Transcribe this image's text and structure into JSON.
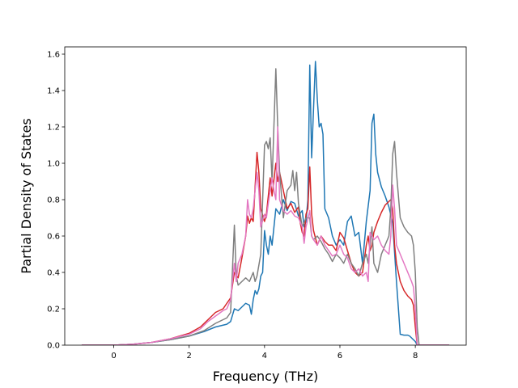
{
  "chart_data": {
    "type": "line",
    "title": "",
    "xlabel": "Frequency (THz)",
    "ylabel": "Partial Density of States",
    "xlim": [
      -1.3,
      9.35
    ],
    "ylim": [
      0.0,
      1.64
    ],
    "xticks": [
      0,
      2,
      4,
      6,
      8
    ],
    "yticks": [
      0.0,
      0.2,
      0.4,
      0.6,
      0.8,
      1.0,
      1.2,
      1.4,
      1.6
    ],
    "xtick_labels": [
      "0",
      "2",
      "4",
      "6",
      "8"
    ],
    "ytick_labels": [
      "0.0",
      "0.2",
      "0.4",
      "0.6",
      "0.8",
      "1.0",
      "1.2",
      "1.4",
      "1.6"
    ],
    "grid": false,
    "legend": "none",
    "series": [
      {
        "color": "#1f77b4",
        "points": [
          [
            -0.85,
            0
          ],
          [
            0,
            0
          ],
          [
            0.5,
            0.005
          ],
          [
            1.0,
            0.015
          ],
          [
            1.5,
            0.03
          ],
          [
            2.0,
            0.05
          ],
          [
            2.4,
            0.075
          ],
          [
            2.7,
            0.1
          ],
          [
            3.0,
            0.115
          ],
          [
            3.1,
            0.13
          ],
          [
            3.2,
            0.2
          ],
          [
            3.3,
            0.19
          ],
          [
            3.4,
            0.21
          ],
          [
            3.5,
            0.23
          ],
          [
            3.6,
            0.22
          ],
          [
            3.65,
            0.17
          ],
          [
            3.7,
            0.25
          ],
          [
            3.75,
            0.3
          ],
          [
            3.8,
            0.28
          ],
          [
            3.85,
            0.31
          ],
          [
            3.9,
            0.38
          ],
          [
            3.95,
            0.4
          ],
          [
            4.0,
            0.63
          ],
          [
            4.05,
            0.55
          ],
          [
            4.1,
            0.5
          ],
          [
            4.15,
            0.6
          ],
          [
            4.2,
            0.55
          ],
          [
            4.3,
            0.75
          ],
          [
            4.4,
            0.72
          ],
          [
            4.5,
            0.8
          ],
          [
            4.6,
            0.74
          ],
          [
            4.7,
            0.79
          ],
          [
            4.8,
            0.78
          ],
          [
            4.9,
            0.71
          ],
          [
            5.0,
            0.74
          ],
          [
            5.05,
            0.65
          ],
          [
            5.1,
            0.68
          ],
          [
            5.15,
            0.8
          ],
          [
            5.2,
            1.54
          ],
          [
            5.25,
            1.03
          ],
          [
            5.3,
            1.3
          ],
          [
            5.35,
            1.56
          ],
          [
            5.4,
            1.35
          ],
          [
            5.45,
            1.2
          ],
          [
            5.5,
            1.22
          ],
          [
            5.55,
            1.16
          ],
          [
            5.6,
            0.75
          ],
          [
            5.7,
            0.7
          ],
          [
            5.8,
            0.6
          ],
          [
            5.9,
            0.55
          ],
          [
            6.0,
            0.58
          ],
          [
            6.1,
            0.55
          ],
          [
            6.2,
            0.68
          ],
          [
            6.3,
            0.71
          ],
          [
            6.4,
            0.6
          ],
          [
            6.5,
            0.62
          ],
          [
            6.6,
            0.45
          ],
          [
            6.7,
            0.68
          ],
          [
            6.8,
            0.85
          ],
          [
            6.85,
            1.22
          ],
          [
            6.9,
            1.27
          ],
          [
            6.95,
            1.05
          ],
          [
            7.0,
            0.95
          ],
          [
            7.1,
            0.87
          ],
          [
            7.2,
            0.82
          ],
          [
            7.3,
            0.76
          ],
          [
            7.4,
            0.67
          ],
          [
            7.5,
            0.35
          ],
          [
            7.6,
            0.06
          ],
          [
            7.7,
            0.055
          ],
          [
            7.8,
            0.055
          ],
          [
            7.85,
            0.05
          ],
          [
            7.9,
            0.04
          ],
          [
            8.0,
            0.02
          ],
          [
            8.05,
            0
          ],
          [
            8.9,
            0
          ]
        ]
      },
      {
        "color": "#d62728",
        "points": [
          [
            -0.85,
            0
          ],
          [
            0,
            0
          ],
          [
            0.5,
            0.005
          ],
          [
            1.0,
            0.015
          ],
          [
            1.5,
            0.035
          ],
          [
            2.0,
            0.065
          ],
          [
            2.3,
            0.1
          ],
          [
            2.5,
            0.14
          ],
          [
            2.7,
            0.18
          ],
          [
            2.9,
            0.2
          ],
          [
            3.0,
            0.23
          ],
          [
            3.1,
            0.26
          ],
          [
            3.2,
            0.4
          ],
          [
            3.3,
            0.37
          ],
          [
            3.4,
            0.48
          ],
          [
            3.5,
            0.6
          ],
          [
            3.55,
            0.71
          ],
          [
            3.6,
            0.67
          ],
          [
            3.65,
            0.7
          ],
          [
            3.7,
            0.68
          ],
          [
            3.8,
            1.06
          ],
          [
            3.85,
            0.95
          ],
          [
            3.9,
            0.75
          ],
          [
            4.0,
            0.68
          ],
          [
            4.05,
            0.72
          ],
          [
            4.1,
            0.82
          ],
          [
            4.15,
            0.92
          ],
          [
            4.2,
            0.82
          ],
          [
            4.3,
            1.0
          ],
          [
            4.35,
            0.9
          ],
          [
            4.4,
            0.95
          ],
          [
            4.5,
            0.85
          ],
          [
            4.6,
            0.75
          ],
          [
            4.7,
            0.78
          ],
          [
            4.8,
            0.73
          ],
          [
            4.9,
            0.76
          ],
          [
            4.95,
            0.67
          ],
          [
            5.0,
            0.62
          ],
          [
            5.05,
            0.6
          ],
          [
            5.1,
            0.72
          ],
          [
            5.15,
            0.75
          ],
          [
            5.2,
            0.98
          ],
          [
            5.25,
            0.72
          ],
          [
            5.3,
            0.63
          ],
          [
            5.4,
            0.55
          ],
          [
            5.5,
            0.6
          ],
          [
            5.6,
            0.57
          ],
          [
            5.7,
            0.55
          ],
          [
            5.8,
            0.55
          ],
          [
            5.9,
            0.52
          ],
          [
            6.0,
            0.62
          ],
          [
            6.1,
            0.59
          ],
          [
            6.2,
            0.52
          ],
          [
            6.3,
            0.45
          ],
          [
            6.4,
            0.4
          ],
          [
            6.5,
            0.38
          ],
          [
            6.6,
            0.4
          ],
          [
            6.7,
            0.55
          ],
          [
            6.75,
            0.6
          ],
          [
            6.8,
            0.52
          ],
          [
            6.85,
            0.55
          ],
          [
            6.9,
            0.62
          ],
          [
            7.0,
            0.68
          ],
          [
            7.1,
            0.73
          ],
          [
            7.2,
            0.77
          ],
          [
            7.3,
            0.79
          ],
          [
            7.35,
            0.8
          ],
          [
            7.4,
            0.75
          ],
          [
            7.45,
            0.55
          ],
          [
            7.5,
            0.45
          ],
          [
            7.6,
            0.35
          ],
          [
            7.7,
            0.3
          ],
          [
            7.8,
            0.27
          ],
          [
            7.9,
            0.25
          ],
          [
            7.95,
            0.22
          ],
          [
            8.0,
            0.1
          ],
          [
            8.05,
            0
          ],
          [
            8.9,
            0
          ]
        ]
      },
      {
        "color": "#7f7f7f",
        "points": [
          [
            -0.85,
            0
          ],
          [
            0,
            0
          ],
          [
            0.5,
            0.005
          ],
          [
            1.0,
            0.015
          ],
          [
            1.5,
            0.03
          ],
          [
            2.0,
            0.05
          ],
          [
            2.4,
            0.08
          ],
          [
            2.7,
            0.12
          ],
          [
            3.0,
            0.15
          ],
          [
            3.1,
            0.18
          ],
          [
            3.2,
            0.66
          ],
          [
            3.25,
            0.38
          ],
          [
            3.3,
            0.33
          ],
          [
            3.4,
            0.35
          ],
          [
            3.5,
            0.37
          ],
          [
            3.6,
            0.35
          ],
          [
            3.7,
            0.4
          ],
          [
            3.75,
            0.35
          ],
          [
            3.8,
            0.38
          ],
          [
            3.9,
            0.5
          ],
          [
            4.0,
            1.1
          ],
          [
            4.05,
            1.12
          ],
          [
            4.1,
            1.08
          ],
          [
            4.15,
            1.14
          ],
          [
            4.2,
            0.9
          ],
          [
            4.3,
            1.52
          ],
          [
            4.35,
            1.2
          ],
          [
            4.4,
            0.95
          ],
          [
            4.5,
            0.7
          ],
          [
            4.6,
            0.85
          ],
          [
            4.7,
            0.88
          ],
          [
            4.75,
            0.96
          ],
          [
            4.8,
            0.85
          ],
          [
            4.85,
            0.95
          ],
          [
            4.9,
            0.78
          ],
          [
            5.0,
            0.65
          ],
          [
            5.1,
            0.7
          ],
          [
            5.2,
            0.7
          ],
          [
            5.25,
            0.6
          ],
          [
            5.3,
            0.58
          ],
          [
            5.4,
            0.6
          ],
          [
            5.5,
            0.57
          ],
          [
            5.6,
            0.53
          ],
          [
            5.7,
            0.5
          ],
          [
            5.8,
            0.46
          ],
          [
            5.9,
            0.5
          ],
          [
            6.0,
            0.48
          ],
          [
            6.1,
            0.45
          ],
          [
            6.2,
            0.5
          ],
          [
            6.3,
            0.45
          ],
          [
            6.4,
            0.42
          ],
          [
            6.5,
            0.38
          ],
          [
            6.6,
            0.45
          ],
          [
            6.7,
            0.5
          ],
          [
            6.75,
            0.45
          ],
          [
            6.8,
            0.55
          ],
          [
            6.85,
            0.65
          ],
          [
            6.9,
            0.45
          ],
          [
            7.0,
            0.4
          ],
          [
            7.1,
            0.5
          ],
          [
            7.2,
            0.55
          ],
          [
            7.3,
            0.6
          ],
          [
            7.35,
            0.75
          ],
          [
            7.4,
            1.05
          ],
          [
            7.45,
            1.12
          ],
          [
            7.5,
            0.95
          ],
          [
            7.6,
            0.7
          ],
          [
            7.7,
            0.65
          ],
          [
            7.8,
            0.62
          ],
          [
            7.9,
            0.6
          ],
          [
            7.95,
            0.55
          ],
          [
            8.0,
            0.4
          ],
          [
            8.05,
            0.1
          ],
          [
            8.1,
            0
          ],
          [
            8.9,
            0
          ]
        ]
      },
      {
        "color": "#e377c2",
        "points": [
          [
            -0.85,
            0
          ],
          [
            0,
            0
          ],
          [
            0.5,
            0.005
          ],
          [
            1.0,
            0.015
          ],
          [
            1.5,
            0.035
          ],
          [
            2.0,
            0.06
          ],
          [
            2.3,
            0.09
          ],
          [
            2.5,
            0.13
          ],
          [
            2.7,
            0.16
          ],
          [
            2.9,
            0.19
          ],
          [
            3.0,
            0.2
          ],
          [
            3.1,
            0.25
          ],
          [
            3.2,
            0.45
          ],
          [
            3.25,
            0.35
          ],
          [
            3.3,
            0.45
          ],
          [
            3.4,
            0.5
          ],
          [
            3.5,
            0.6
          ],
          [
            3.55,
            0.8
          ],
          [
            3.6,
            0.72
          ],
          [
            3.65,
            0.7
          ],
          [
            3.7,
            0.75
          ],
          [
            3.8,
            0.95
          ],
          [
            3.85,
            0.85
          ],
          [
            3.9,
            0.65
          ],
          [
            4.0,
            0.72
          ],
          [
            4.05,
            0.7
          ],
          [
            4.1,
            0.78
          ],
          [
            4.2,
            0.92
          ],
          [
            4.25,
            0.85
          ],
          [
            4.3,
            0.8
          ],
          [
            4.35,
            1.2
          ],
          [
            4.4,
            0.8
          ],
          [
            4.5,
            0.74
          ],
          [
            4.6,
            0.72
          ],
          [
            4.7,
            0.74
          ],
          [
            4.8,
            0.71
          ],
          [
            4.9,
            0.7
          ],
          [
            5.0,
            0.65
          ],
          [
            5.05,
            0.56
          ],
          [
            5.1,
            0.65
          ],
          [
            5.2,
            0.74
          ],
          [
            5.25,
            0.6
          ],
          [
            5.3,
            0.58
          ],
          [
            5.4,
            0.55
          ],
          [
            5.5,
            0.6
          ],
          [
            5.6,
            0.55
          ],
          [
            5.7,
            0.52
          ],
          [
            5.8,
            0.49
          ],
          [
            5.9,
            0.5
          ],
          [
            6.0,
            0.55
          ],
          [
            6.1,
            0.5
          ],
          [
            6.2,
            0.48
          ],
          [
            6.3,
            0.42
          ],
          [
            6.4,
            0.4
          ],
          [
            6.5,
            0.42
          ],
          [
            6.6,
            0.38
          ],
          [
            6.7,
            0.4
          ],
          [
            6.75,
            0.35
          ],
          [
            6.8,
            0.62
          ],
          [
            6.85,
            0.6
          ],
          [
            6.9,
            0.58
          ],
          [
            7.0,
            0.6
          ],
          [
            7.1,
            0.55
          ],
          [
            7.2,
            0.52
          ],
          [
            7.3,
            0.5
          ],
          [
            7.35,
            0.6
          ],
          [
            7.4,
            0.88
          ],
          [
            7.45,
            0.75
          ],
          [
            7.5,
            0.55
          ],
          [
            7.6,
            0.5
          ],
          [
            7.7,
            0.45
          ],
          [
            7.8,
            0.4
          ],
          [
            7.9,
            0.35
          ],
          [
            7.95,
            0.32
          ],
          [
            8.0,
            0.2
          ],
          [
            8.05,
            0
          ],
          [
            8.9,
            0
          ]
        ]
      }
    ]
  }
}
